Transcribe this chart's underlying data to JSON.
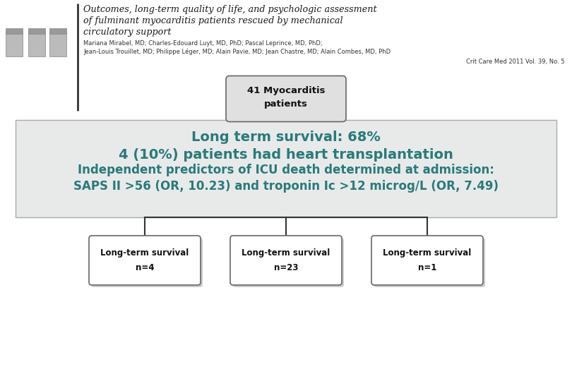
{
  "bg_color": "#ffffff",
  "center_box_bg": "#e6e8e8",
  "center_text_color": "#2a7a7a",
  "title_line1": "Outcomes, long-term quality of life, and psychologic assessment",
  "title_line2": "of fulminant myocarditis patients rescued by mechanical",
  "title_line3": "circulatory support",
  "authors_line1": "Mariana Mirabel, MD; Charles-Edouard Luyt, MD, PhD; Pascal Leprince, MD, PhD;",
  "authors_line2": "Jean-Louis Trouillet, MD; Philippe Léger, MD; Alain Pavie, MD; Jean Chastre, MD; Alain Combes, MD, PhD",
  "journal": "Crit Care Med 2011 Vol. 39, No. 5",
  "top_box_text": "41 Myocarditis\npatients",
  "center_block_lines": [
    "Long term survival: 68%",
    "4 (10%) patients had heart transplantation",
    "Independent predictors of ICU death determined at admission:",
    "SAPS II >56 (OR, 10.23) and troponin Ic >12 microg/L (OR, 7.49)"
  ],
  "bottom_boxes": [
    "Long-term survival\nn=4",
    "Long-term survival\nn=23",
    "Long-term survival\nn=1"
  ],
  "line_color": "#333333",
  "box_border_color": "#666666",
  "bottom_box_bg": "#ffffff",
  "top_node_bg": "#e0e0e0",
  "header_divider_color": "#333333"
}
